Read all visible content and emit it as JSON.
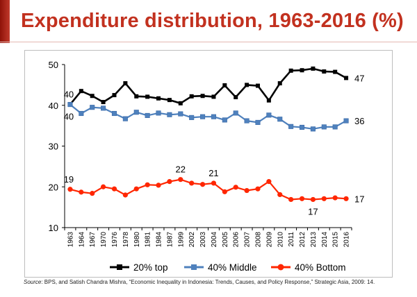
{
  "slide": {
    "title": "Expenditure distribution, 1963-2016 (%)",
    "accent_color": "#c2311f"
  },
  "source": {
    "label": "Source",
    "text": ": BPS, and Satish Chandra Mishra, “Economic Inequality in Indonesia: Trends, Causes, and Policy Response,” Strategic Asia, 2009: 14."
  },
  "chart_data": {
    "type": "line",
    "title": "",
    "xlabel": "",
    "ylabel": "",
    "ylim": [
      10,
      50
    ],
    "yticks": [
      10,
      20,
      30,
      40,
      50
    ],
    "grid": false,
    "legend": "bottom",
    "categories": [
      "1963",
      "1964",
      "1967",
      "1970",
      "1976",
      "1978",
      "1980",
      "1981",
      "1984",
      "1987",
      "1999",
      "2002",
      "2003",
      "2004",
      "2005",
      "2006",
      "2007",
      "2008",
      "2009",
      "2010",
      "2011",
      "2012",
      "2013",
      "2014",
      "2015",
      "2016"
    ],
    "series": [
      {
        "name": "20% top",
        "color": "#000000",
        "marker": "square",
        "values": [
          40.2,
          43.5,
          42.3,
          40.8,
          42.5,
          45.4,
          42.2,
          42.1,
          41.7,
          41.3,
          40.5,
          42.2,
          42.3,
          42.1,
          44.9,
          42.0,
          45.0,
          44.8,
          41.2,
          45.4,
          48.5,
          48.6,
          49.0,
          48.3,
          48.2,
          46.7
        ]
      },
      {
        "name": "40% Middle",
        "color": "#4f81bd",
        "marker": "square",
        "values": [
          40.2,
          38.0,
          39.5,
          39.3,
          38.0,
          36.7,
          38.3,
          37.5,
          38.1,
          37.7,
          37.9,
          37.0,
          37.2,
          37.2,
          36.4,
          38.1,
          36.2,
          35.8,
          37.6,
          36.6,
          34.8,
          34.6,
          34.2,
          34.7,
          34.7,
          36.2
        ]
      },
      {
        "name": "40% Bottom",
        "color": "#ff2600",
        "marker": "circle",
        "values": [
          19.4,
          18.7,
          18.4,
          20.0,
          19.5,
          18.0,
          19.5,
          20.5,
          20.4,
          21.3,
          21.8,
          20.9,
          20.6,
          20.9,
          18.8,
          19.9,
          19.1,
          19.5,
          21.3,
          18.1,
          16.9,
          17.1,
          16.9,
          17.1,
          17.3,
          17.1
        ]
      }
    ],
    "annotations": [
      {
        "series": 0,
        "index": 0,
        "text": "40",
        "pos": "above"
      },
      {
        "series": 1,
        "index": 0,
        "text": "40",
        "pos": "below"
      },
      {
        "series": 0,
        "index": 25,
        "text": "47",
        "pos": "right"
      },
      {
        "series": 1,
        "index": 25,
        "text": "36",
        "pos": "right"
      },
      {
        "series": 2,
        "index": 0,
        "text": "19",
        "pos": "above"
      },
      {
        "series": 2,
        "index": 10,
        "text": "22",
        "pos": "above"
      },
      {
        "series": 2,
        "index": 13,
        "text": "21",
        "pos": "above"
      },
      {
        "series": 2,
        "index": 22,
        "text": "17",
        "pos": "below"
      },
      {
        "series": 2,
        "index": 25,
        "text": "17",
        "pos": "right"
      }
    ]
  }
}
